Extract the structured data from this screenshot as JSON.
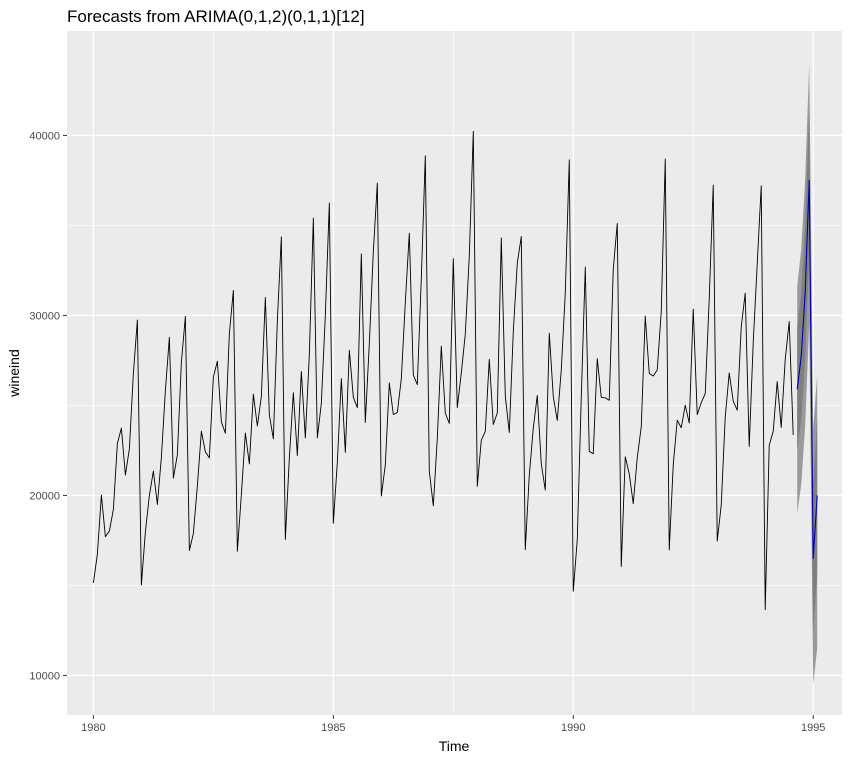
{
  "chart_data": {
    "type": "line",
    "title": "Forecasts from ARIMA(0,1,2)(0,1,1)[12]",
    "xlabel": "Time",
    "ylabel": "wineind",
    "xlim": [
      1979.45,
      1995.6
    ],
    "ylim": [
      7800,
      45800
    ],
    "x_ticks": [
      1980,
      1985,
      1990,
      1995
    ],
    "x_tick_labels": [
      "1980",
      "1985",
      "1990",
      "1995"
    ],
    "y_ticks": [
      10000,
      20000,
      30000,
      40000
    ],
    "y_tick_labels": [
      "10000",
      "20000",
      "30000",
      "40000"
    ],
    "grid": true,
    "panel_background": "#ebebeb",
    "grid_color": "#ffffff",
    "series": [
      {
        "role": "observed",
        "color": "#000000",
        "start": 1980,
        "frequency": 12,
        "values": [
          15136,
          16733,
          20016,
          17708,
          18019,
          19227,
          22893,
          23739,
          21133,
          22591,
          26786,
          29740,
          15028,
          17977,
          20008,
          21354,
          19498,
          22125,
          25817,
          28779,
          20960,
          22254,
          27392,
          29945,
          16933,
          17892,
          20533,
          23569,
          22417,
          22084,
          26580,
          27454,
          24081,
          23451,
          28991,
          31386,
          16896,
          20045,
          23471,
          21747,
          25621,
          23859,
          25500,
          30998,
          24475,
          23145,
          29701,
          34365,
          17556,
          22077,
          25702,
          22214,
          26886,
          23191,
          27831,
          35406,
          23195,
          25110,
          30009,
          36242,
          18450,
          21845,
          26488,
          22394,
          28057,
          25451,
          24872,
          33424,
          24052,
          28449,
          33533,
          37351,
          19969,
          21701,
          26249,
          24493,
          24603,
          26485,
          30723,
          34569,
          26689,
          26157,
          32064,
          38870,
          21337,
          19419,
          23166,
          28286,
          24570,
          24001,
          33151,
          24878,
          26804,
          28967,
          33311,
          40226,
          20504,
          23060,
          23562,
          27562,
          23940,
          24584,
          34303,
          25517,
          23494,
          29095,
          32903,
          34379,
          16991,
          21109,
          23740,
          25552,
          21752,
          20294,
          29009,
          25500,
          24166,
          26960,
          31222,
          38641,
          14672,
          17543,
          25453,
          32683,
          22449,
          22316,
          27595,
          25451,
          25421,
          25288,
          32568,
          35110,
          16052,
          22146,
          21198,
          19543,
          22084,
          23816,
          29961,
          26773,
          26635,
          26972,
          30207,
          38687,
          16974,
          21697,
          24179,
          23757,
          25013,
          24019,
          30345,
          24488,
          25156,
          25650,
          30923,
          37240,
          17466,
          19463,
          24352,
          26805,
          25236,
          24735,
          29356,
          31234,
          22724,
          28496,
          32857,
          37198,
          13652,
          22784,
          23565,
          26323,
          23779,
          27549,
          29660,
          23356
        ]
      },
      {
        "role": "forecast",
        "color": "#0000aa",
        "band_color": "#7f7f7f",
        "start": 1994.6667,
        "frequency": 12,
        "values": [
          25900,
          27700,
          31300,
          37500,
          16500,
          20000
        ],
        "lower_80": [
          22500,
          24200,
          27600,
          33500,
          12400,
          15700
        ],
        "upper_80": [
          29300,
          31200,
          35000,
          41500,
          20600,
          24300
        ],
        "lower_95": [
          19000,
          20600,
          23900,
          29500,
          9500,
          11500
        ],
        "upper_95": [
          31600,
          33700,
          37600,
          44000,
          23700,
          26700
        ]
      }
    ]
  }
}
